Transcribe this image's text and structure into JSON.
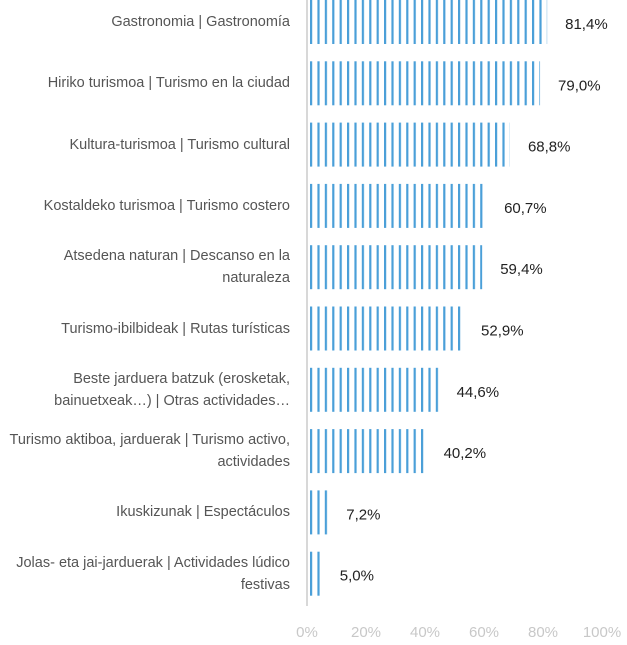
{
  "chart_data": {
    "type": "hbar",
    "categories": [
      "Gastronomia | Gastronomía",
      "Hiriko turismoa | Turismo en la ciudad",
      "Kultura-turismoa | Turismo cultural",
      "Kostaldeko turismoa | Turismo costero",
      "Atsedena naturan | Descanso en la naturaleza",
      "Turismo-ibilbideak | Rutas turísticas",
      "Beste jarduera batzuk (erosketak, bainuetxeak…) | Otras actividades…",
      "Turismo aktiboa, jarduerak | Turismo activo, actividades",
      "Ikuskizunak | Espectáculos",
      "Jolas- eta jai-jarduerak | Actividades lúdico festivas"
    ],
    "values": [
      81.4,
      79.0,
      68.8,
      60.7,
      59.4,
      52.9,
      44.6,
      40.2,
      7.2,
      5.0
    ],
    "value_labels": [
      "81,4%",
      "79,0%",
      "68,8%",
      "60,7%",
      "59,4%",
      "52,9%",
      "44,6%",
      "40,2%",
      "7,2%",
      "5,0%"
    ],
    "color": "#4a9fd8",
    "xlim": [
      0,
      100
    ],
    "xticks": [
      {
        "value": 0,
        "label": "0%"
      },
      {
        "value": 20,
        "label": "20%"
      },
      {
        "value": 40,
        "label": "40%"
      },
      {
        "value": 60,
        "label": "60%"
      },
      {
        "value": 80,
        "label": "80%"
      },
      {
        "value": 100,
        "label": "100%"
      }
    ]
  }
}
